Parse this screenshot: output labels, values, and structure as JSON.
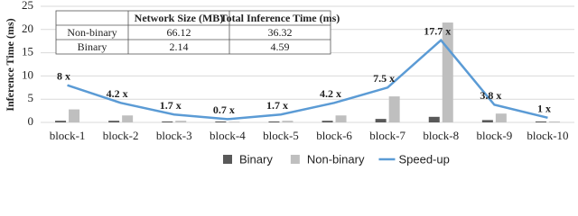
{
  "chart_data": {
    "type": "bar",
    "y_label": "Inference Time (ms)",
    "categories": [
      "block-1",
      "block-2",
      "block-3",
      "block-4",
      "block-5",
      "block-6",
      "block-7",
      "block-8",
      "block-9",
      "block-10"
    ],
    "series": [
      {
        "name": "Binary",
        "type": "bar",
        "color": "#595959",
        "values": [
          0.35,
          0.35,
          0.2,
          0.2,
          0.2,
          0.35,
          0.75,
          1.2,
          0.5,
          0.2
        ]
      },
      {
        "name": "Non-binary",
        "type": "bar",
        "color": "#bfbfbf",
        "values": [
          2.8,
          1.5,
          0.35,
          0.15,
          0.35,
          1.5,
          5.6,
          21.5,
          1.9,
          0.2
        ]
      },
      {
        "name": "Speed-up",
        "type": "line",
        "color": "#5b9bd5",
        "values": [
          8,
          4.2,
          1.7,
          0.7,
          1.7,
          4.2,
          7.5,
          17.7,
          3.8,
          1
        ],
        "value_labels": [
          "8 x",
          "4.2 x",
          "1.7 x",
          "0.7 x",
          "1.7 x",
          "4.2 x",
          "7.5 x",
          "17.7 x",
          "3.8 x",
          "1 x"
        ]
      }
    ],
    "ylim": [
      0,
      25
    ],
    "yticks": [
      0,
      5,
      10,
      15,
      20,
      25
    ],
    "grid": true,
    "legend": "bottom",
    "table": {
      "columns": [
        "Network Size (MB)",
        "Total Inference Time (ms)"
      ],
      "rows": [
        {
          "label": "Non-binary",
          "cells": [
            "66.12",
            "36.32"
          ]
        },
        {
          "label": "Binary",
          "cells": [
            "2.14",
            "4.59"
          ]
        }
      ]
    }
  }
}
